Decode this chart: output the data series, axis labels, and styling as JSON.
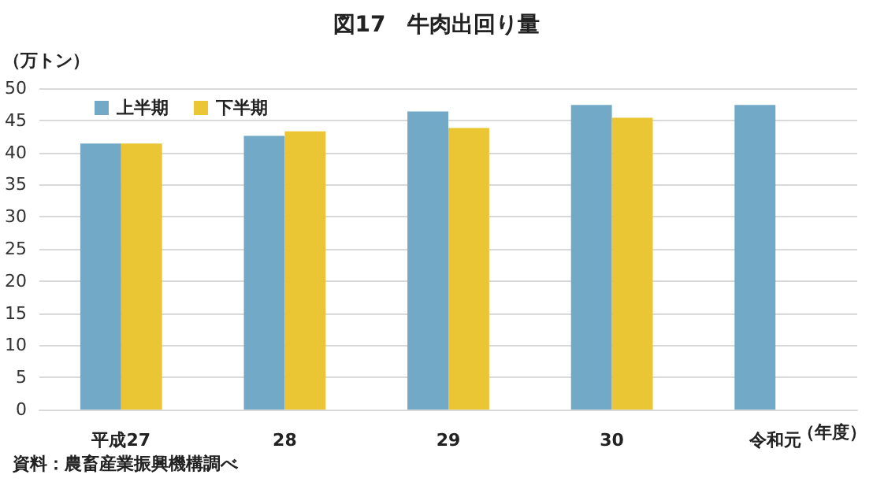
{
  "chart_data": {
    "type": "bar",
    "title": "図17　牛肉出回り量",
    "ylabel": "（万トン）",
    "xlabel": "（年度）",
    "annotations": [
      "資料：農畜産業振興機構調べ"
    ],
    "categories": [
      "平成27",
      "28",
      "29",
      "30",
      "令和元"
    ],
    "series": [
      {
        "name": "上半期",
        "color": "#71a9c6",
        "values": [
          41.4,
          42.6,
          46.4,
          47.4,
          47.4
        ]
      },
      {
        "name": "下半期",
        "color": "#ebc634",
        "values": [
          41.4,
          43.3,
          43.8,
          45.4,
          null
        ]
      }
    ],
    "ylim": [
      0,
      50
    ],
    "yticks": [
      0,
      5,
      10,
      15,
      20,
      25,
      30,
      35,
      40,
      45,
      50
    ],
    "grid": "y",
    "legend": "top left"
  }
}
